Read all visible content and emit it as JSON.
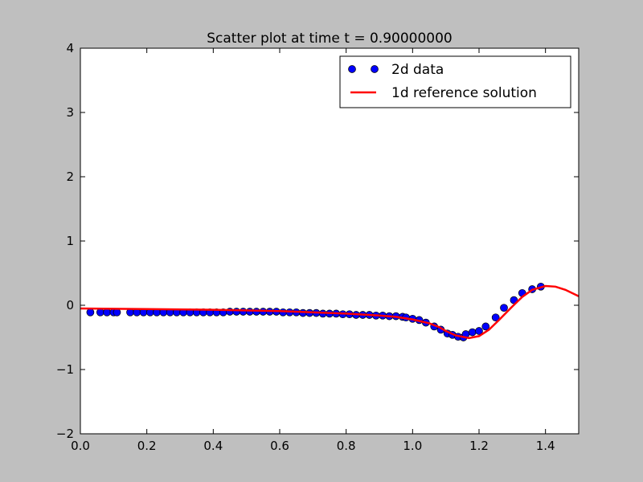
{
  "chart_data": {
    "type": "scatter",
    "title": "Scatter plot at time t =     0.90000000",
    "xlabel": "",
    "ylabel": "",
    "xlim": [
      0.0,
      1.5
    ],
    "ylim": [
      -2,
      4
    ],
    "xticks": [
      "0.0",
      "0.2",
      "0.4",
      "0.6",
      "0.8",
      "1.0",
      "1.2",
      "1.4"
    ],
    "xtick_values": [
      0.0,
      0.2,
      0.4,
      0.6,
      0.8,
      1.0,
      1.2,
      1.4
    ],
    "yticks": [
      "−2",
      "−1",
      "0",
      "1",
      "2",
      "3",
      "4"
    ],
    "ytick_values": [
      -2,
      -1,
      0,
      1,
      2,
      3,
      4
    ],
    "grid": false,
    "legend_position": "top-right",
    "series": [
      {
        "name": "2d data",
        "kind": "scatter",
        "color": "#0000ff",
        "x": [
          0.03,
          0.06,
          0.08,
          0.1,
          0.11,
          0.15,
          0.17,
          0.19,
          0.21,
          0.23,
          0.25,
          0.27,
          0.29,
          0.31,
          0.33,
          0.35,
          0.37,
          0.39,
          0.41,
          0.43,
          0.45,
          0.47,
          0.49,
          0.51,
          0.53,
          0.55,
          0.57,
          0.59,
          0.61,
          0.63,
          0.65,
          0.67,
          0.69,
          0.71,
          0.73,
          0.75,
          0.77,
          0.79,
          0.81,
          0.83,
          0.85,
          0.87,
          0.89,
          0.91,
          0.93,
          0.95,
          0.97,
          0.98,
          1.0,
          1.02,
          1.04,
          1.065,
          1.085,
          1.105,
          1.12,
          1.137,
          1.153,
          1.16,
          1.18,
          1.2,
          1.22,
          1.25,
          1.275,
          1.305,
          1.33,
          1.36,
          1.386
        ],
        "y": [
          -0.11,
          -0.11,
          -0.11,
          -0.11,
          -0.11,
          -0.11,
          -0.11,
          -0.11,
          -0.11,
          -0.11,
          -0.11,
          -0.11,
          -0.11,
          -0.11,
          -0.11,
          -0.11,
          -0.11,
          -0.11,
          -0.11,
          -0.11,
          -0.1,
          -0.1,
          -0.1,
          -0.1,
          -0.1,
          -0.1,
          -0.1,
          -0.1,
          -0.11,
          -0.11,
          -0.11,
          -0.12,
          -0.12,
          -0.12,
          -0.13,
          -0.13,
          -0.13,
          -0.14,
          -0.14,
          -0.15,
          -0.15,
          -0.15,
          -0.16,
          -0.16,
          -0.17,
          -0.17,
          -0.18,
          -0.19,
          -0.21,
          -0.23,
          -0.27,
          -0.33,
          -0.38,
          -0.44,
          -0.46,
          -0.49,
          -0.5,
          -0.45,
          -0.42,
          -0.4,
          -0.33,
          -0.19,
          -0.04,
          0.08,
          0.19,
          0.25,
          0.29
        ]
      },
      {
        "name": "1d reference solution",
        "kind": "line",
        "color": "#ff0000",
        "x": [
          0.0,
          0.2,
          0.4,
          0.6,
          0.8,
          0.9,
          0.95,
          1.0,
          1.05,
          1.08,
          1.1,
          1.13,
          1.17,
          1.2,
          1.23,
          1.26,
          1.3,
          1.33,
          1.36,
          1.4,
          1.43,
          1.46,
          1.5
        ],
        "y": [
          -0.05,
          -0.06,
          -0.07,
          -0.09,
          -0.13,
          -0.16,
          -0.18,
          -0.22,
          -0.28,
          -0.34,
          -0.4,
          -0.47,
          -0.51,
          -0.48,
          -0.38,
          -0.23,
          -0.02,
          0.13,
          0.24,
          0.3,
          0.29,
          0.24,
          0.14
        ]
      }
    ]
  }
}
